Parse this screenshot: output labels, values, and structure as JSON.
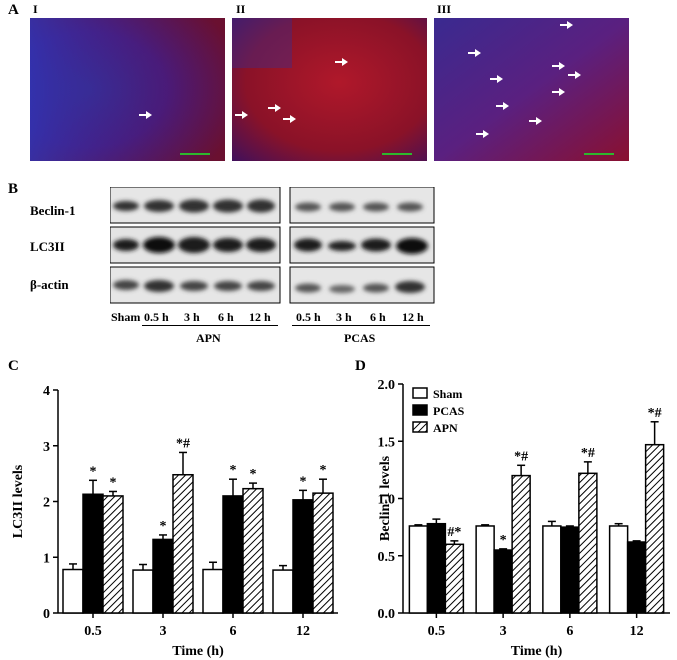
{
  "panel_A": {
    "letter": "A",
    "images": [
      {
        "label": "I",
        "arrow_count": 1
      },
      {
        "label": "II",
        "arrow_count": 4
      },
      {
        "label": "III",
        "arrow_count": 10
      }
    ]
  },
  "panel_B": {
    "letter": "B",
    "rows": [
      "Beclin-1",
      "LC3II",
      "β-actin"
    ],
    "lanes": [
      "Sham",
      "0.5 h",
      "3 h",
      "6 h",
      "12 h",
      "0.5 h",
      "3 h",
      "6 h",
      "12 h"
    ],
    "groups": [
      "APN",
      "PCAS"
    ]
  },
  "chart_data": [
    {
      "panel": "C",
      "type": "bar",
      "categories": [
        "0.5",
        "3",
        "6",
        "12"
      ],
      "xlabel": "Time (h)",
      "ylabel": "LC3II levels",
      "ylim": [
        0,
        4
      ],
      "yticks": [
        "0",
        "1",
        "2",
        "3",
        "4"
      ],
      "legend": "none",
      "series": [
        {
          "name": "Sham",
          "values": [
            0.78,
            0.77,
            0.78,
            0.77
          ],
          "errors": [
            0.1,
            0.1,
            0.13,
            0.08
          ]
        },
        {
          "name": "PCAS",
          "values": [
            2.13,
            1.32,
            2.1,
            2.03
          ],
          "errors": [
            0.25,
            0.08,
            0.3,
            0.17
          ]
        },
        {
          "name": "APN",
          "values": [
            2.1,
            2.48,
            2.23,
            2.15
          ],
          "errors": [
            0.08,
            0.4,
            0.1,
            0.25
          ]
        }
      ],
      "annotations": [
        {
          "category": "0.5",
          "series": "PCAS",
          "text": "*"
        },
        {
          "category": "0.5",
          "series": "APN",
          "text": "*"
        },
        {
          "category": "3",
          "series": "PCAS",
          "text": "*"
        },
        {
          "category": "3",
          "series": "APN",
          "text": "*#"
        },
        {
          "category": "6",
          "series": "PCAS",
          "text": "*"
        },
        {
          "category": "6",
          "series": "APN",
          "text": "*"
        },
        {
          "category": "12",
          "series": "PCAS",
          "text": "*"
        },
        {
          "category": "12",
          "series": "APN",
          "text": "*"
        }
      ]
    },
    {
      "panel": "D",
      "type": "bar",
      "categories": [
        "0.5",
        "3",
        "6",
        "12"
      ],
      "xlabel": "Time (h)",
      "ylabel": "Beclin-1 levels",
      "ylim": [
        0,
        2
      ],
      "yticks": [
        "0.0",
        "0.5",
        "1.0",
        "1.5",
        "2.0"
      ],
      "legend": "top-left",
      "series": [
        {
          "name": "Sham",
          "values": [
            0.76,
            0.76,
            0.76,
            0.76
          ],
          "errors": [
            0.01,
            0.01,
            0.04,
            0.02
          ]
        },
        {
          "name": "PCAS",
          "values": [
            0.78,
            0.55,
            0.75,
            0.62
          ],
          "errors": [
            0.04,
            0.01,
            0.01,
            0.01
          ]
        },
        {
          "name": "APN",
          "values": [
            0.6,
            1.2,
            1.22,
            1.47
          ],
          "errors": [
            0.03,
            0.09,
            0.1,
            0.2
          ]
        }
      ],
      "annotations": [
        {
          "category": "0.5",
          "series": "APN",
          "text": "#*"
        },
        {
          "category": "3",
          "series": "PCAS",
          "text": "*"
        },
        {
          "category": "3",
          "series": "APN",
          "text": "*#"
        },
        {
          "category": "6",
          "series": "APN",
          "text": "*#"
        },
        {
          "category": "12",
          "series": "APN",
          "text": "*#"
        }
      ]
    }
  ]
}
